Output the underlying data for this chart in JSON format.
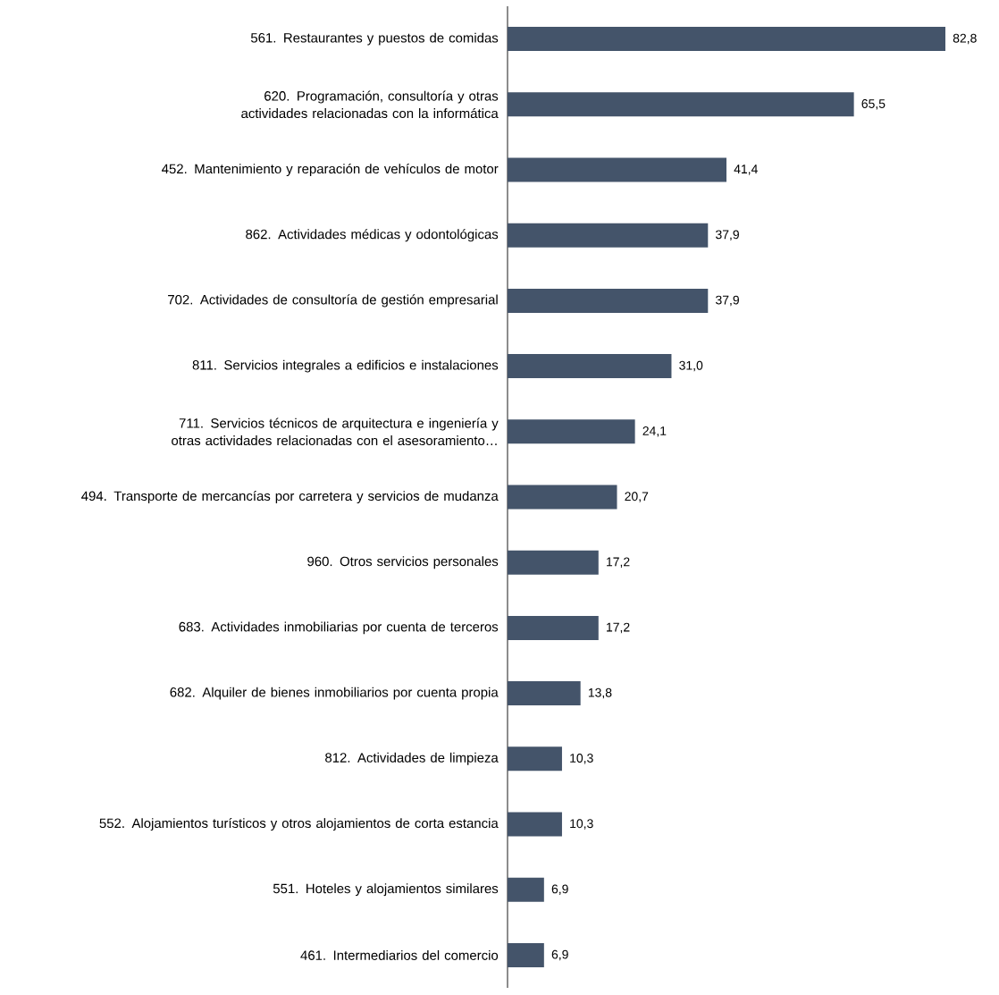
{
  "chart_data": {
    "type": "bar",
    "orientation": "horizontal",
    "categories": [
      "561. Restaurantes y puestos de comidas",
      "620. Programación, consultoría y otras actividades relacionadas con la informática",
      "452. Mantenimiento y reparación de vehículos de motor",
      "862. Actividades médicas y odontológicas",
      "702. Actividades de consultoría de gestión empresarial",
      "811. Servicios integrales a edificios e instalaciones",
      "711. Servicios técnicos de arquitectura e ingeniería y otras actividades relacionadas con el asesoramiento…",
      "494. Transporte de mercancías por carretera y servicios de mudanza",
      "960. Otros servicios personales",
      "683. Actividades inmobiliarias por cuenta de terceros",
      "682. Alquiler de bienes inmobiliarios por cuenta propia",
      "812. Actividades de limpieza",
      "552. Alojamientos turísticos y otros alojamientos de corta estancia",
      "551. Hoteles y alojamientos similares",
      "461. Intermediarios del comercio"
    ],
    "values": [
      82.8,
      65.5,
      41.4,
      37.9,
      37.9,
      31.0,
      24.1,
      20.7,
      17.2,
      17.2,
      13.8,
      10.3,
      10.3,
      6.9,
      6.9
    ],
    "value_labels": [
      "82,8",
      "65,5",
      "41,4",
      "37,9",
      "37,9",
      "31,0",
      "24,1",
      "20,7",
      "17,2",
      "17,2",
      "13,8",
      "10,3",
      "10,3",
      "6,9",
      "6,9"
    ],
    "color": "#44546a",
    "tick_labels": "y"
  }
}
